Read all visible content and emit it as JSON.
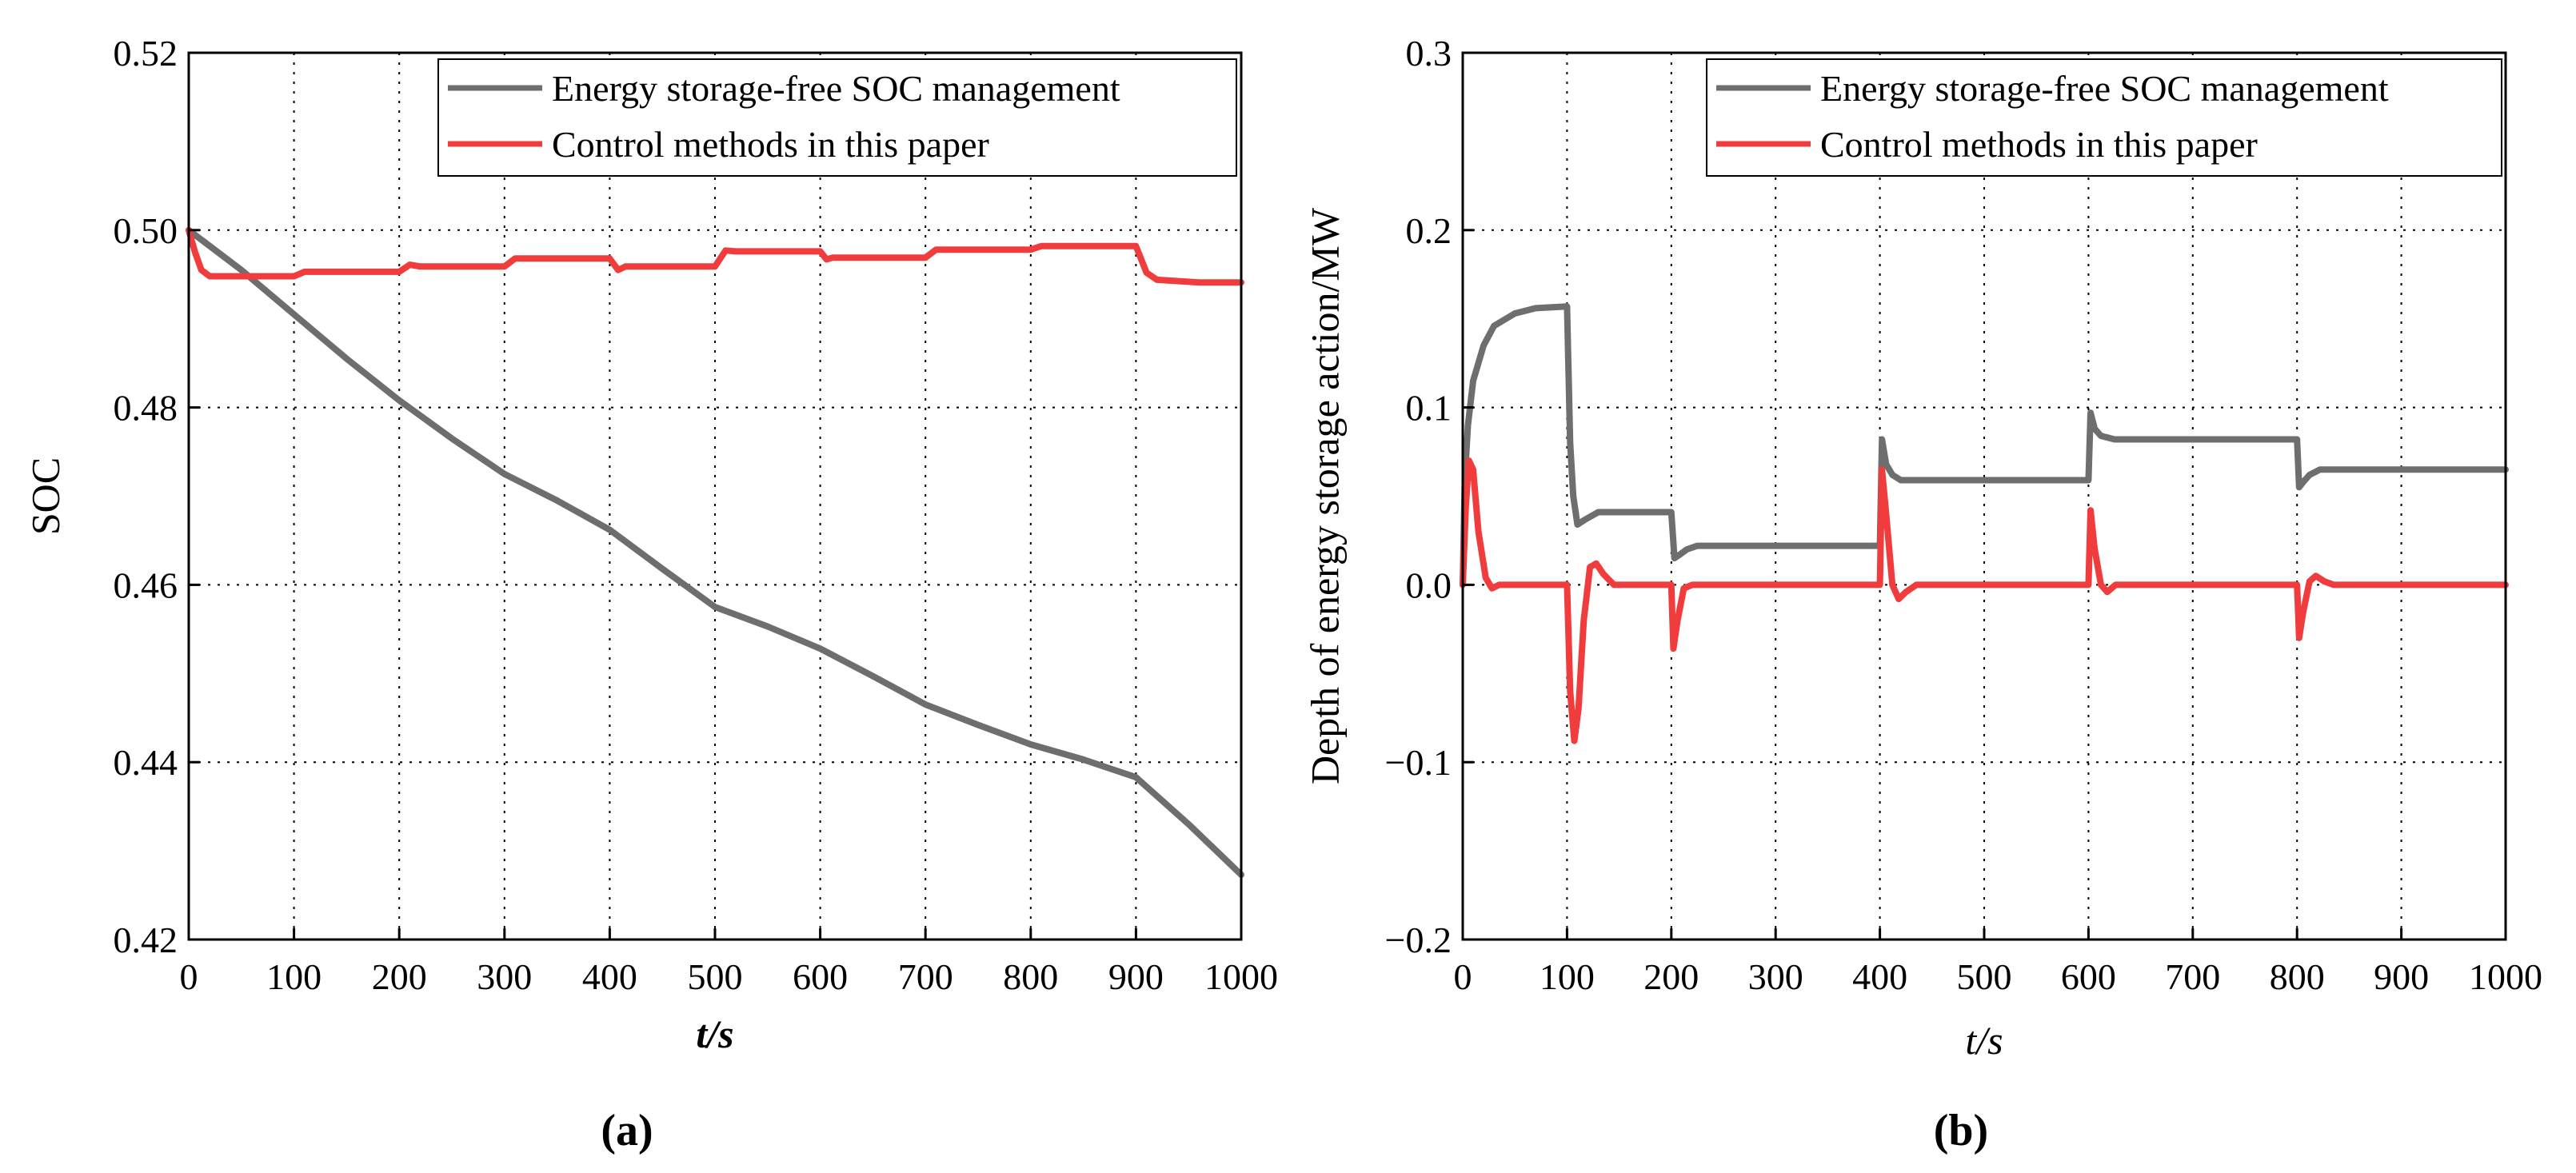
{
  "chart_data": [
    {
      "type": "line",
      "panel_label": "(a)",
      "title": "",
      "xlabel": "t/s",
      "ylabel": "SOC",
      "xlim": [
        0,
        1000
      ],
      "ylim": [
        0.42,
        0.52
      ],
      "xticks": [
        0,
        100,
        200,
        300,
        400,
        500,
        600,
        700,
        800,
        900,
        1000
      ],
      "yticks": [
        0.42,
        0.44,
        0.46,
        0.48,
        0.5,
        0.52
      ],
      "xtick_labels": [
        "0",
        "100",
        "200",
        "300",
        "400",
        "500",
        "600",
        "700",
        "800",
        "900",
        "1000"
      ],
      "ytick_labels": [
        "0.42",
        "0.44",
        "0.46",
        "0.48",
        "0.50",
        "0.52"
      ],
      "grid": true,
      "legend_position": "top-right",
      "series": [
        {
          "name": "Energy storage-free SOC management",
          "color": "#6e6e6e",
          "points": [
            [
              0,
              0.5
            ],
            [
              50,
              0.4955
            ],
            [
              100,
              0.4905
            ],
            [
              150,
              0.4855
            ],
            [
              200,
              0.4808
            ],
            [
              250,
              0.4765
            ],
            [
              300,
              0.4725
            ],
            [
              350,
              0.4695
            ],
            [
              400,
              0.4662
            ],
            [
              450,
              0.4618
            ],
            [
              500,
              0.4575
            ],
            [
              550,
              0.4553
            ],
            [
              600,
              0.4528
            ],
            [
              650,
              0.4497
            ],
            [
              700,
              0.4465
            ],
            [
              750,
              0.4442
            ],
            [
              800,
              0.442
            ],
            [
              850,
              0.4403
            ],
            [
              900,
              0.4383
            ],
            [
              950,
              0.433
            ],
            [
              1000,
              0.4273
            ]
          ]
        },
        {
          "name": "Control methods in this paper",
          "color": "#f03c3c",
          "points": [
            [
              0,
              0.5
            ],
            [
              6,
              0.4975
            ],
            [
              12,
              0.4955
            ],
            [
              20,
              0.4948
            ],
            [
              100,
              0.4948
            ],
            [
              110,
              0.4953
            ],
            [
              200,
              0.4953
            ],
            [
              210,
              0.4961
            ],
            [
              220,
              0.4959
            ],
            [
              300,
              0.4959
            ],
            [
              310,
              0.4968
            ],
            [
              400,
              0.4968
            ],
            [
              408,
              0.4955
            ],
            [
              415,
              0.4959
            ],
            [
              500,
              0.4959
            ],
            [
              510,
              0.4977
            ],
            [
              520,
              0.4976
            ],
            [
              600,
              0.4976
            ],
            [
              606,
              0.4967
            ],
            [
              612,
              0.4969
            ],
            [
              700,
              0.4969
            ],
            [
              710,
              0.4978
            ],
            [
              800,
              0.4978
            ],
            [
              810,
              0.4982
            ],
            [
              900,
              0.4982
            ],
            [
              910,
              0.4952
            ],
            [
              920,
              0.4944
            ],
            [
              960,
              0.4941
            ],
            [
              1000,
              0.4941
            ]
          ]
        }
      ]
    },
    {
      "type": "line",
      "panel_label": "(b)",
      "title": "",
      "xlabel": "t/s",
      "ylabel": "Depth of energy storage action/MW",
      "xlim": [
        0,
        1000
      ],
      "ylim": [
        -0.2,
        0.3
      ],
      "xticks": [
        0,
        100,
        200,
        300,
        400,
        500,
        600,
        700,
        800,
        900,
        1000
      ],
      "yticks": [
        -0.2,
        -0.1,
        0.0,
        0.1,
        0.2,
        0.3
      ],
      "xtick_labels": [
        "0",
        "100",
        "200",
        "300",
        "400",
        "500",
        "600",
        "700",
        "800",
        "900",
        "1000"
      ],
      "ytick_labels": [
        "−0.2",
        "−0.1",
        "0.0",
        "0.1",
        "0.2",
        "0.3"
      ],
      "grid": true,
      "legend_position": "top-right",
      "series": [
        {
          "name": "Energy storage-free SOC management",
          "color": "#6e6e6e",
          "points": [
            [
              0,
              0.0
            ],
            [
              2,
              0.06
            ],
            [
              5,
              0.09
            ],
            [
              10,
              0.115
            ],
            [
              20,
              0.135
            ],
            [
              30,
              0.146
            ],
            [
              50,
              0.153
            ],
            [
              70,
              0.156
            ],
            [
              100,
              0.157
            ],
            [
              103,
              0.08
            ],
            [
              106,
              0.05
            ],
            [
              110,
              0.034
            ],
            [
              118,
              0.037
            ],
            [
              130,
              0.041
            ],
            [
              200,
              0.041
            ],
            [
              203,
              0.015
            ],
            [
              208,
              0.017
            ],
            [
              215,
              0.02
            ],
            [
              225,
              0.022
            ],
            [
              400,
              0.022
            ],
            [
              402,
              0.082
            ],
            [
              406,
              0.068
            ],
            [
              412,
              0.062
            ],
            [
              420,
              0.059
            ],
            [
              600,
              0.059
            ],
            [
              602,
              0.097
            ],
            [
              606,
              0.088
            ],
            [
              612,
              0.084
            ],
            [
              625,
              0.082
            ],
            [
              800,
              0.082
            ],
            [
              802,
              0.055
            ],
            [
              806,
              0.058
            ],
            [
              812,
              0.062
            ],
            [
              822,
              0.065
            ],
            [
              1000,
              0.065
            ]
          ]
        },
        {
          "name": "Control methods in this paper",
          "color": "#f03c3c",
          "points": [
            [
              0,
              0.0
            ],
            [
              3,
              0.045
            ],
            [
              6,
              0.07
            ],
            [
              10,
              0.065
            ],
            [
              15,
              0.03
            ],
            [
              22,
              0.004
            ],
            [
              28,
              -0.002
            ],
            [
              35,
              0.0
            ],
            [
              100,
              0.0
            ],
            [
              103,
              -0.06
            ],
            [
              107,
              -0.088
            ],
            [
              111,
              -0.07
            ],
            [
              116,
              -0.02
            ],
            [
              122,
              0.01
            ],
            [
              128,
              0.012
            ],
            [
              135,
              0.006
            ],
            [
              145,
              0.0
            ],
            [
              200,
              0.0
            ],
            [
              202,
              -0.036
            ],
            [
              206,
              -0.02
            ],
            [
              212,
              -0.002
            ],
            [
              220,
              0.0
            ],
            [
              400,
              0.0
            ],
            [
              402,
              0.065
            ],
            [
              406,
              0.04
            ],
            [
              412,
              0.0
            ],
            [
              418,
              -0.008
            ],
            [
              425,
              -0.004
            ],
            [
              435,
              0.0
            ],
            [
              600,
              0.0
            ],
            [
              602,
              0.042
            ],
            [
              606,
              0.02
            ],
            [
              612,
              0.0
            ],
            [
              618,
              -0.004
            ],
            [
              626,
              0.0
            ],
            [
              800,
              0.0
            ],
            [
              802,
              -0.03
            ],
            [
              806,
              -0.015
            ],
            [
              812,
              0.002
            ],
            [
              818,
              0.005
            ],
            [
              826,
              0.002
            ],
            [
              835,
              0.0
            ],
            [
              1000,
              0.0
            ]
          ]
        }
      ]
    }
  ]
}
